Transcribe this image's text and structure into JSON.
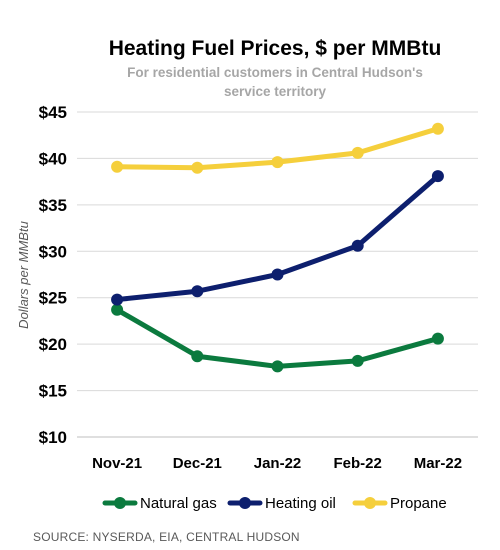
{
  "chart_data": {
    "type": "line",
    "title": "Heating Fuel Prices, $ per MMBtu",
    "subtitle_lines": [
      "For residential customers in Central Hudson's",
      "service territory"
    ],
    "ylabel": "Dollars per MMBtu",
    "xlabel": "",
    "categories": [
      "Nov-21",
      "Dec-21",
      "Jan-22",
      "Feb-22",
      "Mar-22"
    ],
    "ylim": [
      10,
      45
    ],
    "yticks": [
      10,
      15,
      20,
      25,
      30,
      35,
      40,
      45
    ],
    "ytick_labels": [
      "$10",
      "$15",
      "$20",
      "$25",
      "$30",
      "$35",
      "$40",
      "$45"
    ],
    "grid": true,
    "legend_position": "bottom",
    "series": [
      {
        "name": "Natural gas",
        "color": "#0b7a3e",
        "values": [
          23.7,
          18.7,
          17.6,
          18.2,
          20.6
        ]
      },
      {
        "name": "Heating oil",
        "color": "#0d1f6e",
        "values": [
          24.8,
          25.7,
          27.5,
          30.6,
          38.1
        ]
      },
      {
        "name": "Propane",
        "color": "#f5cf3c",
        "values": [
          39.1,
          39.0,
          39.6,
          40.6,
          43.2
        ]
      }
    ],
    "source": "SOURCE: NYSERDA, EIA, CENTRAL HUDSON"
  }
}
